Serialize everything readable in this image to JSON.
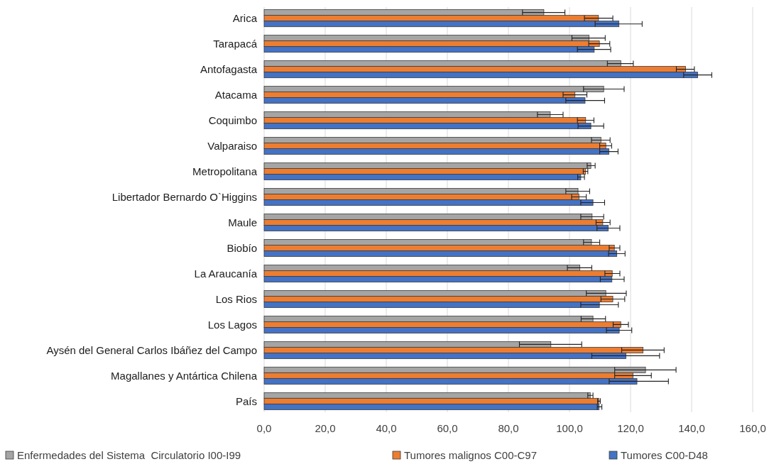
{
  "chart_data": {
    "type": "bar",
    "orientation": "horizontal",
    "categories": [
      "Arica",
      "Tarapacá",
      "Antofagasta",
      "Atacama",
      "Coquimbo",
      "Valparaiso",
      "Metropolitana",
      "Libertador Bernardo O`Higgins",
      "Maule",
      "Biobío",
      "La Araucanía",
      "Los Rios",
      "Los Lagos",
      "Aysén del General Carlos Ibáñez del Campo",
      "Magallanes y Antártica Chilena",
      "País"
    ],
    "series": [
      {
        "name": "Enfermedades del Sistema  Circulatorio I00-I99",
        "color": "#a5a5a5",
        "values": [
          91.6,
          106.4,
          116.8,
          111.2,
          93.7,
          110.3,
          107.0,
          102.8,
          107.4,
          107.2,
          103.4,
          111.9,
          107.7,
          93.9,
          124.9,
          106.8
        ],
        "errors": [
          [
            84.6,
            98.5
          ],
          [
            100.8,
            111.7
          ],
          [
            112.4,
            120.9
          ],
          [
            104.6,
            117.9
          ],
          [
            89.5,
            97.9
          ],
          [
            107.2,
            113.3
          ],
          [
            105.8,
            108.4
          ],
          [
            98.8,
            106.6
          ],
          [
            103.7,
            111.2
          ],
          [
            104.6,
            109.9
          ],
          [
            99.3,
            107.3
          ],
          [
            105.5,
            118.6
          ],
          [
            103.8,
            111.8
          ],
          [
            83.6,
            104.0
          ],
          [
            114.8,
            134.9
          ],
          [
            106.0,
            107.7
          ]
        ]
      },
      {
        "name": "Tumores malignos C00-C97",
        "color": "#ed7d31",
        "values": [
          109.5,
          109.8,
          138.0,
          101.8,
          105.3,
          111.9,
          105.3,
          103.1,
          110.9,
          114.7,
          114.0,
          114.2,
          116.8,
          124.1,
          120.8,
          109.6
        ],
        "errors": [
          [
            104.9,
            114.2
          ],
          [
            106.3,
            113.2
          ],
          [
            135.0,
            140.9
          ],
          [
            97.9,
            105.7
          ],
          [
            102.6,
            108.0
          ],
          [
            109.9,
            113.8
          ],
          [
            104.5,
            106.0
          ],
          [
            100.7,
            105.5
          ],
          [
            108.7,
            113.3
          ],
          [
            113.0,
            116.5
          ],
          [
            111.6,
            116.5
          ],
          [
            110.3,
            118.1
          ],
          [
            114.3,
            119.3
          ],
          [
            117.1,
            131.0
          ],
          [
            114.8,
            126.8
          ],
          [
            109.2,
            110.1
          ]
        ]
      },
      {
        "name": "Tumores C00-D48",
        "color": "#4472c4",
        "values": [
          116.2,
          108.1,
          142.0,
          105.1,
          107.0,
          112.9,
          103.7,
          107.7,
          112.7,
          115.5,
          113.9,
          109.8,
          116.3,
          118.5,
          122.1,
          109.7
        ],
        "errors": [
          [
            108.4,
            123.8
          ],
          [
            102.6,
            113.5
          ],
          [
            137.4,
            146.6
          ],
          [
            98.8,
            111.5
          ],
          [
            102.8,
            111.2
          ],
          [
            109.9,
            115.9
          ],
          [
            102.7,
            104.9
          ],
          [
            103.7,
            111.5
          ],
          [
            109.0,
            116.5
          ],
          [
            112.8,
            118.2
          ],
          [
            110.1,
            117.9
          ],
          [
            103.7,
            116.0
          ],
          [
            112.1,
            120.4
          ],
          [
            107.3,
            129.5
          ],
          [
            113.0,
            132.4
          ],
          [
            109.1,
            110.6
          ]
        ]
      }
    ],
    "xlim": [
      0,
      160
    ],
    "xticks": [
      {
        "value": 0,
        "label": "0,0"
      },
      {
        "value": 20,
        "label": "20,0"
      },
      {
        "value": 40,
        "label": "40,0"
      },
      {
        "value": 60,
        "label": "60,0"
      },
      {
        "value": 80,
        "label": "80,0"
      },
      {
        "value": 100,
        "label": "100,0"
      },
      {
        "value": 120,
        "label": "120,0"
      },
      {
        "value": 140,
        "label": "140,0"
      },
      {
        "value": 160,
        "label": "160,0"
      }
    ],
    "grid": "x",
    "legend": "bottom"
  }
}
